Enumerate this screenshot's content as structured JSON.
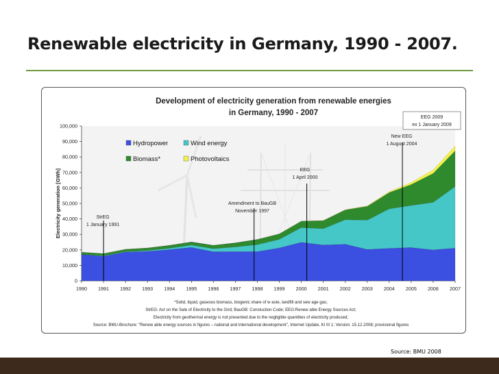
{
  "slide": {
    "title": "Renewable electricity in Germany, 1990 - 2007.",
    "source": "Source: BMU 2008"
  },
  "colors": {
    "hydropower": "#3b4fe0",
    "wind": "#45c7c8",
    "biomass": "#2f8a2e",
    "photovoltaics": "#f3f24a",
    "accent": "#6f9a3c",
    "footer": "#3e2a1c"
  },
  "chart_data": {
    "type": "area",
    "stacked": true,
    "title_line1": "Development of electricity generation from renewable energies",
    "title_line2": "in Germany, 1990 - 2007",
    "ylabel": "Electricity generation [GWh]",
    "xlabel": "",
    "ylim": [
      0,
      100000
    ],
    "yticks": [
      0,
      10000,
      20000,
      30000,
      40000,
      50000,
      60000,
      70000,
      80000,
      90000,
      100000
    ],
    "ytick_labels": [
      "0",
      "10,000",
      "20,000",
      "30,000",
      "40,000",
      "50,000",
      "60,000",
      "70,000",
      "80,000",
      "90,000",
      "100,000"
    ],
    "x": [
      "1990",
      "1991",
      "1992",
      "1993",
      "1994",
      "1995",
      "1996",
      "1997",
      "1998",
      "1999",
      "2000",
      "2001",
      "2002",
      "2003",
      "2004",
      "2005",
      "2006",
      "2007"
    ],
    "series": [
      {
        "name": "Hydropower",
        "color_key": "hydropower",
        "values": [
          17000,
          15900,
          18600,
          19000,
          20200,
          21600,
          18800,
          18900,
          18900,
          21300,
          24900,
          23200,
          23700,
          20300,
          21000,
          21500,
          20000,
          21200
        ]
      },
      {
        "name": "Wind energy",
        "color_key": "wind",
        "values": [
          70,
          250,
          280,
          600,
          900,
          1500,
          2000,
          3000,
          4500,
          5500,
          9500,
          10500,
          15800,
          18900,
          25500,
          27200,
          30700,
          39700
        ]
      },
      {
        "name": "Biomass*",
        "color_key": "biomass",
        "values": [
          1400,
          1400,
          1500,
          1600,
          1800,
          2000,
          2100,
          2600,
          3300,
          3500,
          4100,
          5200,
          6300,
          8900,
          10500,
          13500,
          18700,
          23100
        ]
      },
      {
        "name": "Photovoltaics",
        "color_key": "photovoltaics",
        "values": [
          1,
          2,
          3,
          6,
          8,
          11,
          16,
          26,
          32,
          42,
          64,
          76,
          162,
          313,
          556,
          1282,
          2220,
          3075
        ]
      }
    ],
    "legend": [
      {
        "label": "Hydropower",
        "color_key": "hydropower"
      },
      {
        "label": "Wind energy",
        "color_key": "wind"
      },
      {
        "label": "Biomass*",
        "color_key": "biomass"
      },
      {
        "label": "Photovoltaics",
        "color_key": "photovoltaics"
      }
    ],
    "annotations": [
      {
        "id": "streg",
        "lines": [
          "StrEG",
          "1 January 1991"
        ],
        "at_year": 1991.0,
        "boxed": false
      },
      {
        "id": "baugb",
        "lines": [
          "Amendment to BauGB",
          "November 1997"
        ],
        "at_year": 1997.85,
        "boxed": false
      },
      {
        "id": "eeg",
        "lines": [
          "EEG",
          "1  April 2000"
        ],
        "at_year": 2000.25,
        "boxed": false
      },
      {
        "id": "new-eeg",
        "lines": [
          "New  EEG",
          "1 August  2004"
        ],
        "at_year": 2004.6,
        "boxed": false
      },
      {
        "id": "eeg-2009",
        "lines": [
          "EEG 2009",
          "ex 1 January 2009"
        ],
        "at_year": null,
        "boxed": true
      }
    ],
    "footnotes": [
      "*Solid, liquid, gaseous biomass, biogenic share of w aste, landfill and sew age gas;",
      "StrEG: Act on the Sale of Electricity to the Grid; BauGB: Constuction Code; EEG:Renew able Energy Sources Act;",
      "Electricity from geothermal energy is not presented due to the negligible quantities of electricity produced;",
      "Source: BMU-Brochure: \"Renew able energy sources in figures – national and international development\", Internet Update, KI III 1; Version: 15.12.2008; provisional figures"
    ]
  }
}
